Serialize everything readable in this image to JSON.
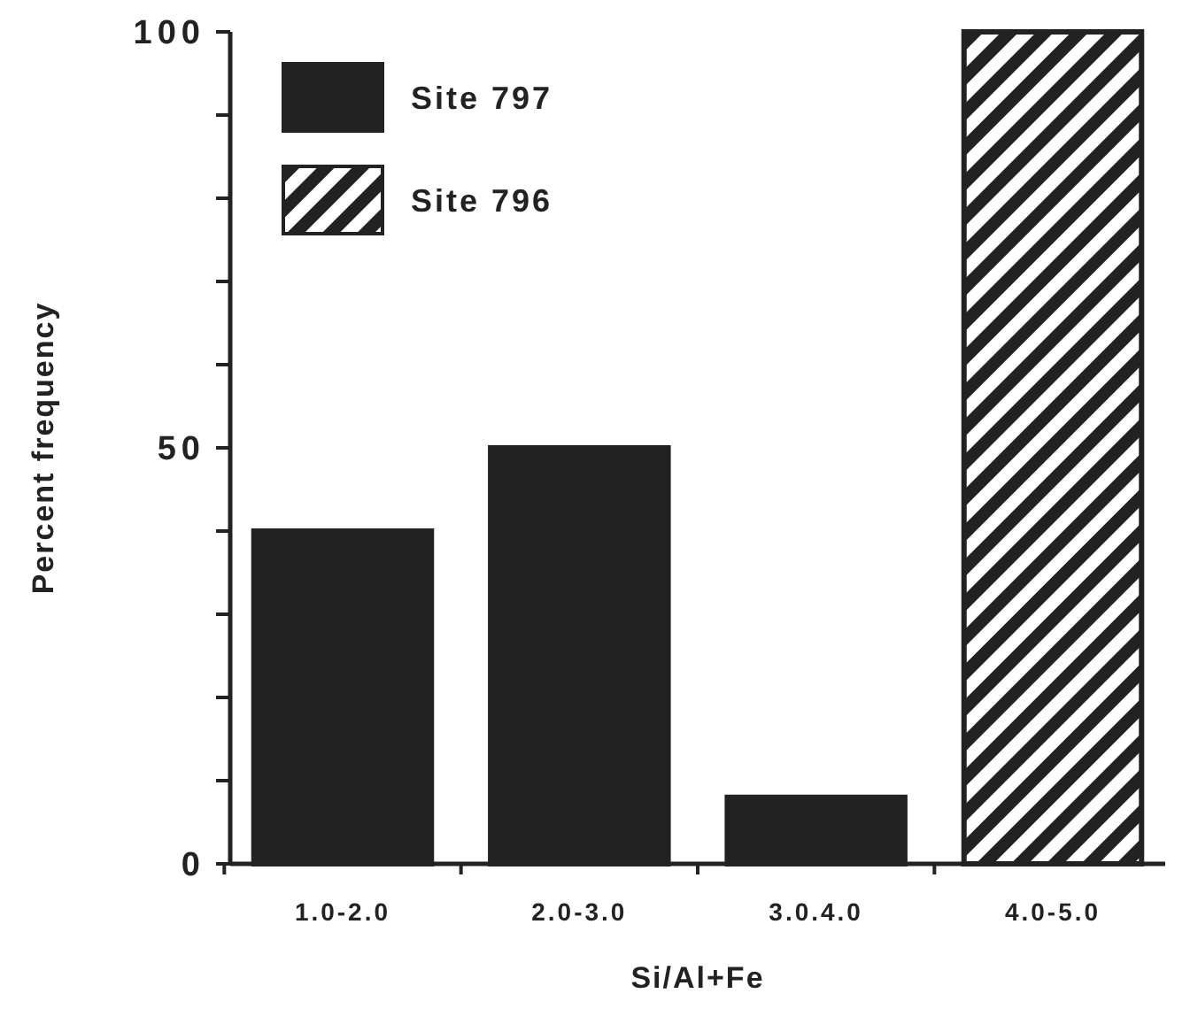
{
  "chart_data": {
    "type": "bar",
    "xlabel": "Si/Al+Fe",
    "ylabel": "Percent frequency",
    "categories": [
      "1.0-2.0",
      "2.0-3.0",
      "3.0.4.0",
      "4.0-5.0"
    ],
    "series": [
      {
        "name": "Site 797",
        "color": "#222222",
        "values": [
          40,
          50,
          8,
          null
        ]
      },
      {
        "name": "Site 796",
        "color": "#222222",
        "values": [
          null,
          null,
          null,
          100
        ]
      }
    ],
    "ylim": [
      0,
      100
    ],
    "yticks": [
      0,
      {
        "value": 10,
        "label": null
      },
      {
        "value": 20,
        "label": null
      },
      {
        "value": 30,
        "label": null
      },
      {
        "value": 40,
        "label": null
      },
      50,
      {
        "value": 60,
        "label": null
      },
      {
        "value": 70,
        "label": null
      },
      {
        "value": 80,
        "label": null
      },
      {
        "value": 90,
        "label": null
      },
      100
    ],
    "legend": "top left",
    "grid": false
  }
}
